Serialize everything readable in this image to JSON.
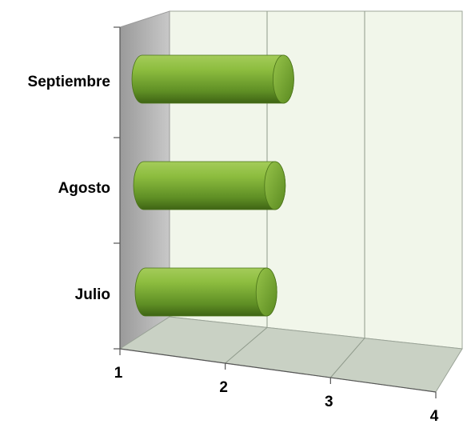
{
  "chart_data": {
    "type": "bar",
    "orientation": "horizontal",
    "style": "3d-cylinder",
    "categories": [
      "Julio",
      "Agosto",
      "Septiembre"
    ],
    "values": [
      2.2,
      2.3,
      2.4
    ],
    "xlim": [
      1,
      4
    ],
    "x_ticks": [
      "1",
      "2",
      "3",
      "4"
    ],
    "bar_color": "#76a832",
    "grid": true,
    "legend": "none"
  }
}
